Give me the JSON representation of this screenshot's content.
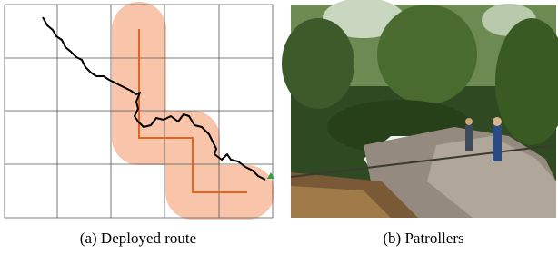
{
  "figure": {
    "subfigures": [
      {
        "caption": "(a) Deployed route"
      },
      {
        "caption": "(b) Patrollers"
      }
    ]
  }
}
